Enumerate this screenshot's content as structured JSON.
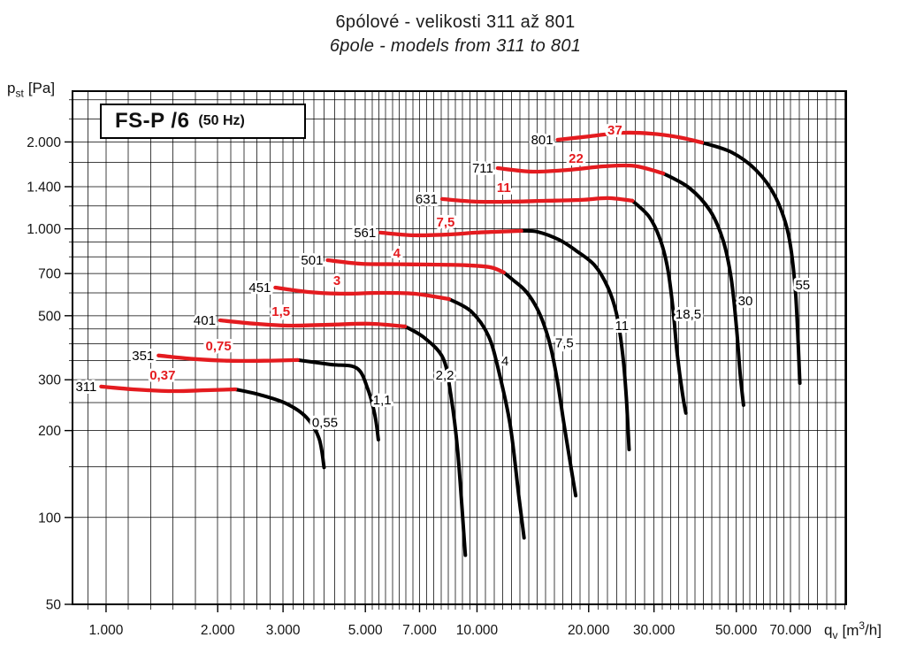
{
  "header": {
    "title_cs": "6pólové - velikosti 311 až 801",
    "title_en": "6pole - models from 311 to 801"
  },
  "chart_box_label": {
    "main": "FS-P /6",
    "suffix": "(50 Hz)"
  },
  "y_axis_label": {
    "sym": "p",
    "sub": "st",
    "unit": "[Pa]"
  },
  "x_axis_label": {
    "sym": "q",
    "sub": "v",
    "unit_pre": "[m",
    "sup": "3",
    "unit_post": "/h]"
  },
  "colors": {
    "curve_red": "#e41b1f",
    "curve_black": "#000000",
    "grid": "#000000"
  },
  "chart_data": {
    "type": "line",
    "title": "FS-P /6 (50 Hz) - 6pole fan curves, models 311 to 801",
    "xlabel": "qv [m3/h]",
    "ylabel": "pst [Pa]",
    "x": {
      "scale": "log",
      "range": [
        812,
        98900
      ],
      "ticks": [
        {
          "v": 1000,
          "label": "1.000"
        },
        {
          "v": 2000,
          "label": "2.000"
        },
        {
          "v": 3000,
          "label": "3.000"
        },
        {
          "v": 5000,
          "label": "5.000"
        },
        {
          "v": 7000,
          "label": "7.000"
        },
        {
          "v": 10000,
          "label": "10.000"
        },
        {
          "v": 20000,
          "label": "20.000"
        },
        {
          "v": 30000,
          "label": "30.000"
        },
        {
          "v": 50000,
          "label": "50.000"
        },
        {
          "v": 70000,
          "label": "70.000"
        }
      ]
    },
    "y": {
      "scale": "log",
      "range": [
        50,
        3000
      ],
      "ticks": [
        {
          "v": 50,
          "label": "50"
        },
        {
          "v": 100,
          "label": "100"
        },
        {
          "v": 200,
          "label": "200"
        },
        {
          "v": 300,
          "label": "300"
        },
        {
          "v": 500,
          "label": "500"
        },
        {
          "v": 700,
          "label": "700"
        },
        {
          "v": 1000,
          "label": "1.000"
        },
        {
          "v": 1400,
          "label": "1.400"
        },
        {
          "v": 2000,
          "label": "2.000"
        }
      ]
    },
    "x_minor_intervals": [
      [
        800,
        1000,
        2
      ],
      [
        1000,
        2000,
        5
      ],
      [
        2000,
        3000,
        5
      ],
      [
        3000,
        5000,
        8
      ],
      [
        5000,
        7000,
        8
      ],
      [
        7000,
        10000,
        8
      ],
      [
        10000,
        20000,
        13
      ],
      [
        20000,
        30000,
        7
      ],
      [
        30000,
        50000,
        10
      ],
      [
        50000,
        70000,
        8
      ],
      [
        70000,
        98000,
        6
      ]
    ],
    "y_gridlines": [
      50,
      100,
      150,
      200,
      250,
      300,
      350,
      400,
      450,
      500,
      600,
      700,
      800,
      900,
      1000,
      1200,
      1400,
      1700,
      2000,
      2400,
      2800
    ],
    "grid": true,
    "series": [
      {
        "model": "311",
        "red_power_kw": "0,37",
        "black_power_kw": "0,55",
        "red_curve": [
          [
            970,
            284
          ],
          [
            1180,
            278
          ],
          [
            1500,
            274
          ],
          [
            1870,
            276
          ],
          [
            2230,
            278
          ]
        ],
        "black_curve": [
          [
            2230,
            278
          ],
          [
            2600,
            266
          ],
          [
            3060,
            248
          ],
          [
            3470,
            222
          ],
          [
            3750,
            188
          ],
          [
            3870,
            149
          ]
        ],
        "red_label_pos": [
          1420,
          311
        ],
        "black_label_pos": [
          3890,
          213
        ]
      },
      {
        "model": "351",
        "red_power_kw": "0,75",
        "black_power_kw": "1,1",
        "red_curve": [
          [
            1385,
            364
          ],
          [
            1720,
            354
          ],
          [
            2140,
            349
          ],
          [
            2670,
            349
          ],
          [
            3285,
            351
          ]
        ],
        "black_curve": [
          [
            3285,
            351
          ],
          [
            4020,
            339
          ],
          [
            4740,
            329
          ],
          [
            5080,
            278
          ],
          [
            5310,
            225
          ],
          [
            5420,
            186
          ]
        ],
        "red_label_pos": [
          2010,
          393
        ],
        "black_label_pos": [
          5550,
          255
        ]
      },
      {
        "model": "401",
        "red_power_kw": "1,5",
        "black_power_kw": "2,2",
        "red_curve": [
          [
            2030,
            482
          ],
          [
            2530,
            469
          ],
          [
            3140,
            462
          ],
          [
            4130,
            466
          ],
          [
            5140,
            469
          ],
          [
            6400,
            459
          ]
        ],
        "black_curve": [
          [
            6400,
            459
          ],
          [
            7220,
            419
          ],
          [
            8100,
            356
          ],
          [
            8490,
            268
          ],
          [
            8870,
            170
          ],
          [
            9300,
            74
          ]
        ],
        "red_label_pos": [
          2960,
          517
        ],
        "black_label_pos": [
          8190,
          311
        ]
      },
      {
        "model": "451",
        "red_power_kw": "3",
        "black_power_kw": "4",
        "red_curve": [
          [
            2860,
            626
          ],
          [
            3510,
            604
          ],
          [
            4360,
            596
          ],
          [
            5430,
            600
          ],
          [
            6760,
            596
          ],
          [
            8410,
            571
          ]
        ],
        "black_curve": [
          [
            8410,
            571
          ],
          [
            9650,
            517
          ],
          [
            10740,
            425
          ],
          [
            11450,
            320
          ],
          [
            12280,
            210
          ],
          [
            12960,
            119
          ],
          [
            13390,
            85
          ]
        ],
        "red_label_pos": [
          4190,
          662
        ],
        "black_label_pos": [
          11900,
          348
        ]
      },
      {
        "model": "501",
        "red_power_kw": "4",
        "black_power_kw": "7,5",
        "red_curve": [
          [
            3955,
            779
          ],
          [
            4870,
            757
          ],
          [
            6060,
            754
          ],
          [
            7540,
            752
          ],
          [
            9390,
            748
          ],
          [
            10880,
            736
          ],
          [
            11810,
            706
          ]
        ],
        "black_curve": [
          [
            11810,
            706
          ],
          [
            12560,
            662
          ],
          [
            13460,
            613
          ],
          [
            14280,
            551
          ],
          [
            15000,
            482
          ],
          [
            15750,
            396
          ],
          [
            16460,
            298
          ],
          [
            17100,
            217
          ],
          [
            17860,
            153
          ],
          [
            18450,
            119
          ]
        ],
        "red_label_pos": [
          6080,
          824
        ],
        "black_label_pos": [
          17200,
          402
        ]
      },
      {
        "model": "561",
        "red_power_kw": "7,5",
        "black_power_kw": "11",
        "red_curve": [
          [
            5490,
            970
          ],
          [
            6760,
            950
          ],
          [
            8410,
            956
          ],
          [
            9910,
            970
          ],
          [
            11370,
            977
          ],
          [
            13170,
            984
          ]
        ],
        "black_curve": [
          [
            13170,
            984
          ],
          [
            14540,
            977
          ],
          [
            16660,
            916
          ],
          [
            18450,
            842
          ],
          [
            20730,
            749
          ],
          [
            22540,
            626
          ],
          [
            23780,
            507
          ],
          [
            24700,
            368
          ],
          [
            25270,
            259
          ],
          [
            25700,
            172
          ]
        ],
        "red_label_pos": [
          8230,
          1055
        ],
        "black_label_pos": [
          24580,
          462
        ]
      },
      {
        "model": "631",
        "red_power_kw": "11",
        "black_power_kw": "18,5",
        "red_curve": [
          [
            8050,
            1269
          ],
          [
            9910,
            1242
          ],
          [
            12340,
            1242
          ],
          [
            15360,
            1251
          ],
          [
            19110,
            1260
          ],
          [
            22520,
            1278
          ],
          [
            26240,
            1251
          ]
        ],
        "black_curve": [
          [
            26240,
            1251
          ],
          [
            29110,
            1101
          ],
          [
            31260,
            910
          ],
          [
            32700,
            721
          ],
          [
            33770,
            525
          ],
          [
            34650,
            369
          ],
          [
            35800,
            268
          ],
          [
            36560,
            230
          ]
        ],
        "red_label_pos": [
          11810,
          1390
        ],
        "black_label_pos": [
          37130,
          507
        ]
      },
      {
        "model": "711",
        "red_power_kw": "22",
        "black_power_kw": "30",
        "red_curve": [
          [
            11370,
            1623
          ],
          [
            14150,
            1578
          ],
          [
            17600,
            1600
          ],
          [
            21910,
            1646
          ],
          [
            26530,
            1652
          ],
          [
            31780,
            1556
          ]
        ],
        "black_curve": [
          [
            31780,
            1556
          ],
          [
            37260,
            1390
          ],
          [
            42470,
            1157
          ],
          [
            46100,
            910
          ],
          [
            48450,
            672
          ],
          [
            50050,
            456
          ],
          [
            51160,
            320
          ],
          [
            52290,
            245
          ]
        ],
        "red_label_pos": [
          18490,
          1754
        ],
        "black_label_pos": [
          52900,
          563
        ]
      },
      {
        "model": "801",
        "red_power_kw": "37",
        "black_power_kw": "55",
        "red_curve": [
          [
            16490,
            2034
          ],
          [
            20180,
            2093
          ],
          [
            24440,
            2152
          ],
          [
            29610,
            2137
          ],
          [
            34880,
            2078
          ],
          [
            40430,
            1991
          ]
        ],
        "black_curve": [
          [
            40430,
            1991
          ],
          [
            48450,
            1844
          ],
          [
            56440,
            1600
          ],
          [
            63650,
            1295
          ],
          [
            69100,
            956
          ],
          [
            72200,
            604
          ],
          [
            74200,
            292
          ]
        ],
        "red_label_pos": [
          23530,
          2198
        ],
        "black_label_pos": [
          75500,
          639
        ]
      }
    ]
  }
}
